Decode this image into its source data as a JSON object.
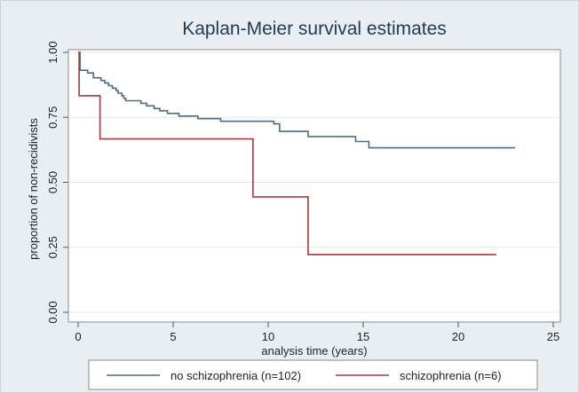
{
  "chart_data": {
    "type": "line",
    "title": "Kaplan-Meier survival estimates",
    "xlabel": "analysis time (years)",
    "ylabel": "proportion of non-recidivists",
    "xlim": [
      0,
      25
    ],
    "ylim": [
      0,
      1
    ],
    "x_ticks": [
      "0",
      "5",
      "10",
      "15",
      "20",
      "25"
    ],
    "y_ticks": [
      "0.00",
      "0.25",
      "0.50",
      "0.75",
      "1.00"
    ],
    "grid": true,
    "legend_position": "bottom",
    "series": [
      {
        "name": "no schizophrenia (n=102)",
        "color": "#4a6b8a",
        "step": true,
        "points": [
          [
            0,
            1.0
          ],
          [
            0.1,
            0.931
          ],
          [
            0.5,
            0.921
          ],
          [
            0.8,
            0.902
          ],
          [
            1.2,
            0.892
          ],
          [
            1.4,
            0.882
          ],
          [
            1.6,
            0.872
          ],
          [
            1.8,
            0.862
          ],
          [
            2.0,
            0.853
          ],
          [
            2.1,
            0.843
          ],
          [
            2.3,
            0.833
          ],
          [
            2.4,
            0.823
          ],
          [
            2.5,
            0.814
          ],
          [
            3.3,
            0.804
          ],
          [
            3.6,
            0.794
          ],
          [
            4.0,
            0.784
          ],
          [
            4.3,
            0.775
          ],
          [
            4.7,
            0.765
          ],
          [
            5.3,
            0.755
          ],
          [
            6.3,
            0.745
          ],
          [
            7.5,
            0.735
          ],
          [
            10.3,
            0.725
          ],
          [
            10.6,
            0.696
          ],
          [
            12.1,
            0.676
          ],
          [
            14.6,
            0.657
          ],
          [
            15.3,
            0.633
          ],
          [
            23.0,
            0.633
          ]
        ]
      },
      {
        "name": "schizophrenia (n=6)",
        "color": "#a8383d",
        "step": true,
        "points": [
          [
            0,
            1.0
          ],
          [
            0.05,
            0.833
          ],
          [
            1.15,
            0.667
          ],
          [
            9.2,
            0.444
          ],
          [
            12.1,
            0.222
          ],
          [
            22.0,
            0.222
          ]
        ]
      }
    ]
  }
}
